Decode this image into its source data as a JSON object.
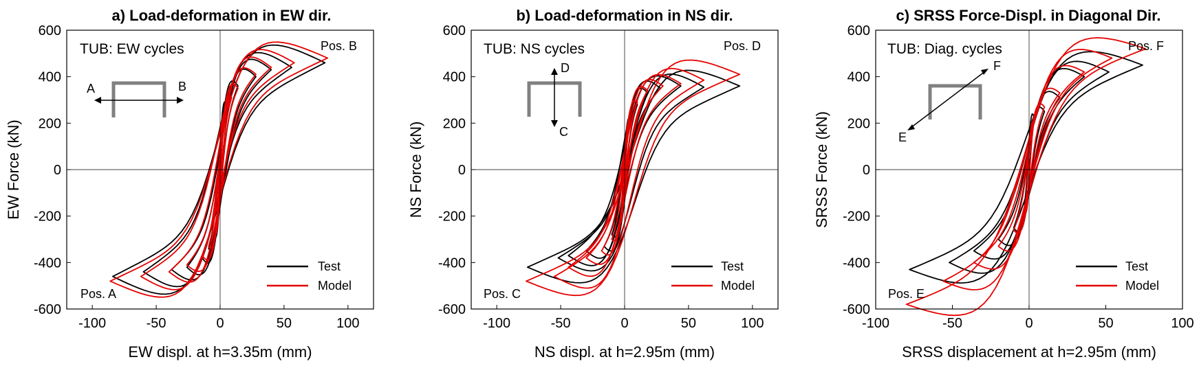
{
  "colors": {
    "test": "#000000",
    "model": "#e60000",
    "section": "#808080",
    "axis": "#000000"
  },
  "chart_data": [
    {
      "type": "line",
      "title": "a) Load-deformation in EW dir.",
      "xlabel": "EW displ. at h=3.35m (mm)",
      "ylabel": "EW Force (kN)",
      "xlim": [
        -120,
        120
      ],
      "ylim": [
        -600,
        600
      ],
      "xticks": [
        "-100",
        "-50",
        "0",
        "50",
        "100"
      ],
      "yticks": [
        "600",
        "400",
        "200",
        "0",
        "-200",
        "-400",
        "-600"
      ],
      "inset_label": "TUB: EW cycles",
      "dir_labels": {
        "neg": "A",
        "pos": "B"
      },
      "annotations": {
        "pos_top": "Pos. B",
        "pos_bottom": "Pos. A"
      },
      "legend": {
        "entries": [
          "Test",
          "Model"
        ],
        "position": "bottom-right"
      },
      "grid": false,
      "series": [
        {
          "name": "Test",
          "color": "#000000",
          "amplitudes": [
            {
              "xmax": 4,
              "xmin": -4,
              "fmax": 290,
              "fmin": -290,
              "fint": 70,
              "sharp": 1
            },
            {
              "xmax": 9,
              "xmin": -9,
              "fmax": 320,
              "fmin": -340,
              "fint": 90,
              "sharp": 1.2
            },
            {
              "xmax": 14,
              "xmin": -14,
              "fmax": 360,
              "fmin": -380,
              "fint": 110,
              "sharp": 1.4
            },
            {
              "xmax": 28,
              "xmin": -26,
              "fmax": 400,
              "fmin": -420,
              "fint": 120,
              "sharp": 1.6
            },
            {
              "xmax": 40,
              "xmin": -38,
              "fmax": 430,
              "fmin": -430,
              "fint": 130,
              "sharp": 1.8
            },
            {
              "xmax": 56,
              "xmin": -60,
              "fmax": 440,
              "fmin": -440,
              "fint": 150,
              "sharp": 2.0
            },
            {
              "xmax": 82,
              "xmin": -84,
              "fmax": 460,
              "fmin": -460,
              "fint": 160,
              "sharp": 2.2
            }
          ]
        },
        {
          "name": "Model",
          "color": "#e60000",
          "amplitudes": [
            {
              "xmax": 4,
              "xmin": -4,
              "fmax": 250,
              "fmin": -280,
              "fint": 60,
              "sharp": 1
            },
            {
              "xmax": 9,
              "xmin": -9,
              "fmax": 310,
              "fmin": -330,
              "fint": 80,
              "sharp": 1.2
            },
            {
              "xmax": 14,
              "xmin": -14,
              "fmax": 350,
              "fmin": -370,
              "fint": 100,
              "sharp": 1.4
            },
            {
              "xmax": 28,
              "xmin": -26,
              "fmax": 410,
              "fmin": -410,
              "fint": 110,
              "sharp": 1.6
            },
            {
              "xmax": 40,
              "xmin": -40,
              "fmax": 440,
              "fmin": -440,
              "fint": 130,
              "sharp": 1.8
            },
            {
              "xmax": 58,
              "xmin": -62,
              "fmax": 460,
              "fmin": -460,
              "fint": 140,
              "sharp": 2.0
            },
            {
              "xmax": 84,
              "xmin": -86,
              "fmax": 480,
              "fmin": -480,
              "fint": 150,
              "sharp": 2.2
            }
          ]
        }
      ]
    },
    {
      "type": "line",
      "title": "b) Load-deformation in NS dir.",
      "xlabel": "NS displ. at h=2.95m (mm)",
      "ylabel": "NS Force (kN)",
      "xlim": [
        -120,
        120
      ],
      "ylim": [
        -600,
        600
      ],
      "xticks": [
        "-100",
        "-50",
        "0",
        "50",
        "100"
      ],
      "yticks": [
        "600",
        "400",
        "200",
        "0",
        "-200",
        "-400",
        "-600"
      ],
      "inset_label": "TUB: NS cycles",
      "dir_labels": {
        "neg": "C",
        "pos": "D"
      },
      "annotations": {
        "pos_top": "Pos. D",
        "pos_bottom": "Pos. C"
      },
      "legend": {
        "entries": [
          "Test",
          "Model"
        ],
        "position": "bottom-right"
      },
      "grid": false,
      "series": [
        {
          "name": "Test",
          "color": "#000000",
          "amplitudes": [
            {
              "xmax": 4,
              "xmin": -4,
              "fmax": 220,
              "fmin": -220,
              "fint": 60,
              "sharp": 1
            },
            {
              "xmax": 10,
              "xmin": -10,
              "fmax": 280,
              "fmin": -280,
              "fint": 80,
              "sharp": 1.2
            },
            {
              "xmax": 18,
              "xmin": -16,
              "fmax": 330,
              "fmin": -330,
              "fint": 100,
              "sharp": 1.4
            },
            {
              "xmax": 28,
              "xmin": -30,
              "fmax": 350,
              "fmin": -350,
              "fint": 110,
              "sharp": 1.6
            },
            {
              "xmax": 44,
              "xmin": -44,
              "fmax": 360,
              "fmin": -370,
              "fint": 120,
              "sharp": 1.8
            },
            {
              "xmax": 62,
              "xmin": -52,
              "fmax": 355,
              "fmin": -380,
              "fint": 130,
              "sharp": 2.0
            },
            {
              "xmax": 90,
              "xmin": -76,
              "fmax": 360,
              "fmin": -420,
              "fint": 140,
              "sharp": 2.2
            }
          ]
        },
        {
          "name": "Model",
          "color": "#e60000",
          "amplitudes": [
            {
              "xmax": 4,
              "xmin": -4,
              "fmax": 210,
              "fmin": -230,
              "fint": 55,
              "sharp": 1
            },
            {
              "xmax": 10,
              "xmin": -10,
              "fmax": 290,
              "fmin": -300,
              "fint": 75,
              "sharp": 1.2
            },
            {
              "xmax": 18,
              "xmin": -18,
              "fmax": 340,
              "fmin": -350,
              "fint": 95,
              "sharp": 1.4
            },
            {
              "xmax": 30,
              "xmin": -30,
              "fmax": 360,
              "fmin": -380,
              "fint": 105,
              "sharp": 1.6
            },
            {
              "xmax": 44,
              "xmin": -44,
              "fmax": 370,
              "fmin": -420,
              "fint": 115,
              "sharp": 1.8
            },
            {
              "xmax": 62,
              "xmin": -55,
              "fmax": 385,
              "fmin": -460,
              "fint": 125,
              "sharp": 2.0
            },
            {
              "xmax": 90,
              "xmin": -77,
              "fmax": 410,
              "fmin": -480,
              "fint": 135,
              "sharp": 2.2
            }
          ]
        }
      ]
    },
    {
      "type": "line",
      "title": "c) SRSS Force-Displ. in Diagonal Dir.",
      "xlabel": "SRSS displacement at h=2.95m (mm)",
      "ylabel": "SRSS Force (kN)",
      "xlim": [
        -100,
        100
      ],
      "ylim": [
        -600,
        600
      ],
      "xticks": [
        "-100",
        "-50",
        "0",
        "50",
        "100"
      ],
      "yticks": [
        "600",
        "400",
        "200",
        "0",
        "-200",
        "-400",
        "-600"
      ],
      "inset_label": "TUB: Diag. cycles",
      "dir_labels": {
        "neg": "E",
        "pos": "F"
      },
      "annotations": {
        "pos_top": "Pos. F",
        "pos_bottom": "Pos. E"
      },
      "legend": {
        "entries": [
          "Test",
          "Model"
        ],
        "position": "bottom-right"
      },
      "grid": false,
      "series": [
        {
          "name": "Test",
          "color": "#000000",
          "amplitudes": [
            {
              "xmax": 3,
              "xmin": -3,
              "fmax": 230,
              "fmin": -150,
              "fint": 80,
              "sharp": 1
            },
            {
              "xmax": 10,
              "xmin": -10,
              "fmax": 250,
              "fmin": -250,
              "fint": 100,
              "sharp": 1.2
            },
            {
              "xmax": 20,
              "xmin": -20,
              "fmax": 310,
              "fmin": -300,
              "fint": 110,
              "sharp": 1.4
            },
            {
              "xmax": 36,
              "xmin": -36,
              "fmax": 400,
              "fmin": -350,
              "fint": 120,
              "sharp": 1.6
            },
            {
              "xmax": 52,
              "xmin": -52,
              "fmax": 420,
              "fmin": -400,
              "fint": 130,
              "sharp": 1.8
            },
            {
              "xmax": 74,
              "xmin": -78,
              "fmax": 450,
              "fmin": -430,
              "fint": 140,
              "sharp": 2.0
            }
          ]
        },
        {
          "name": "Model",
          "color": "#e60000",
          "amplitudes": [
            {
              "xmax": 3,
              "xmin": -3,
              "fmax": 200,
              "fmin": -180,
              "fint": 70,
              "sharp": 1
            },
            {
              "xmax": 10,
              "xmin": -10,
              "fmax": 270,
              "fmin": -260,
              "fint": 90,
              "sharp": 1.2
            },
            {
              "xmax": 20,
              "xmin": -20,
              "fmax": 330,
              "fmin": -330,
              "fint": 100,
              "sharp": 1.4
            },
            {
              "xmax": 36,
              "xmin": -36,
              "fmax": 420,
              "fmin": -400,
              "fint": 110,
              "sharp": 1.6
            },
            {
              "xmax": 54,
              "xmin": -56,
              "fmax": 480,
              "fmin": -480,
              "fint": 120,
              "sharp": 1.8
            },
            {
              "xmax": 76,
              "xmin": -80,
              "fmax": 520,
              "fmin": -580,
              "fint": 130,
              "sharp": 2.0
            }
          ]
        }
      ]
    }
  ]
}
